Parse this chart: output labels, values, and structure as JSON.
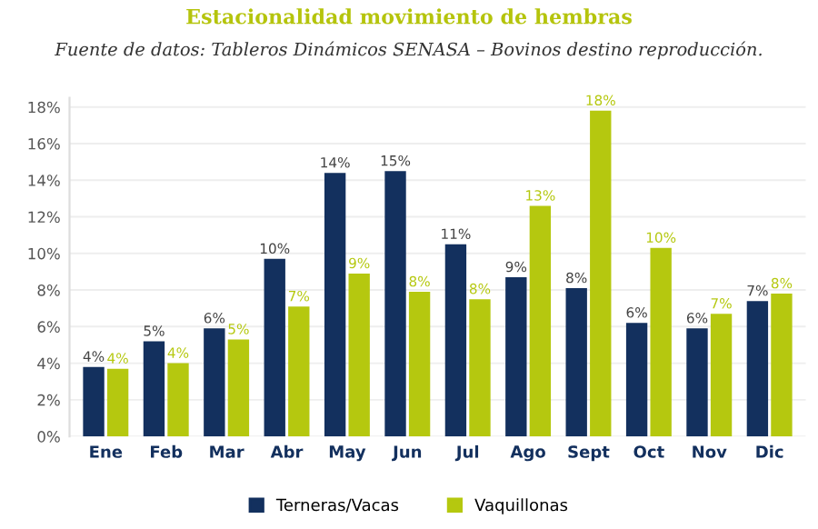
{
  "chart_data": {
    "type": "bar",
    "title": "Estacionalidad movimiento de hembras",
    "subtitle": "Fuente de datos: Tableros Dinámicos SENASA – Bovinos destino reproducción.",
    "categories": [
      "Ene",
      "Feb",
      "Mar",
      "Abr",
      "May",
      "Jun",
      "Jul",
      "Ago",
      "Sept",
      "Oct",
      "Nov",
      "Dic"
    ],
    "series": [
      {
        "name": "Terneras/Vacas",
        "color": "#13305e",
        "values": [
          3.8,
          5.2,
          5.9,
          9.7,
          14.4,
          14.5,
          10.5,
          8.7,
          8.1,
          6.2,
          5.9,
          7.4
        ],
        "value_labels": [
          "4%",
          "5%",
          "6%",
          "10%",
          "14%",
          "15%",
          "11%",
          "9%",
          "8%",
          "6%",
          "6%",
          "7%"
        ]
      },
      {
        "name": "Vaquillonas",
        "color": "#b5c80f",
        "values": [
          3.7,
          4.0,
          5.3,
          7.1,
          8.9,
          7.9,
          7.5,
          12.6,
          17.8,
          10.3,
          6.7,
          7.8
        ],
        "value_labels": [
          "4%",
          "4%",
          "5%",
          "7%",
          "9%",
          "8%",
          "8%",
          "13%",
          "18%",
          "10%",
          "7%",
          "8%"
        ]
      }
    ],
    "ylim": [
      0,
      18.5
    ],
    "yticks": [
      {
        "value": 0,
        "label": "0%"
      },
      {
        "value": 2,
        "label": "2%"
      },
      {
        "value": 4,
        "label": "4%"
      },
      {
        "value": 6,
        "label": "6%"
      },
      {
        "value": 8,
        "label": "8%"
      },
      {
        "value": 10,
        "label": "10%"
      },
      {
        "value": 12,
        "label": "12%"
      },
      {
        "value": 14,
        "label": "14%"
      },
      {
        "value": 16,
        "label": "16%"
      },
      {
        "value": 18,
        "label": "18%"
      }
    ],
    "grid": "y",
    "legend": "bottom"
  }
}
